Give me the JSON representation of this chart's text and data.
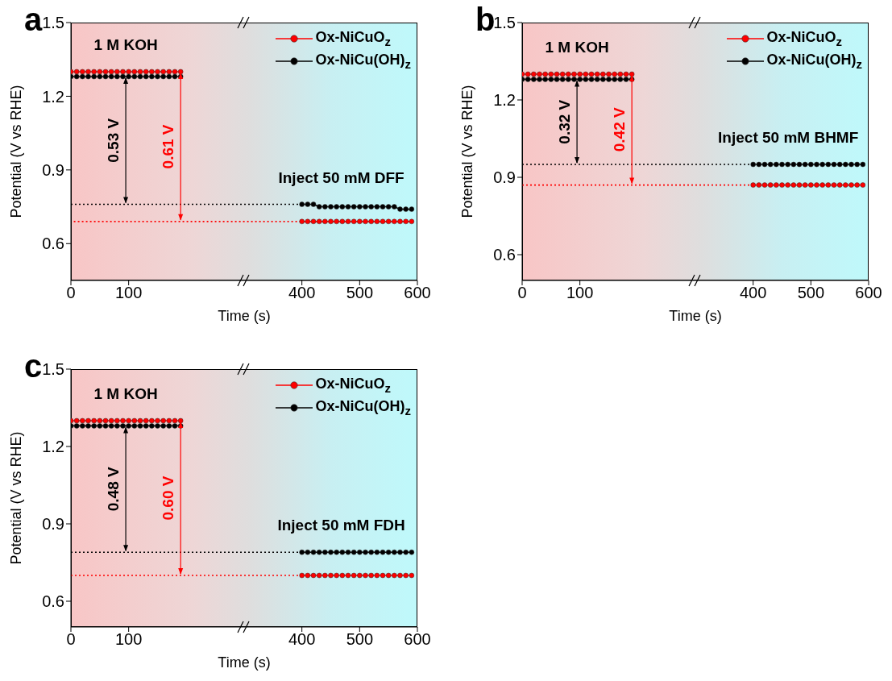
{
  "chart_data": [
    {
      "type": "line",
      "title": "a",
      "xlabel": "Time (s)",
      "ylabel": "Potential (V vs RHE)",
      "xlim": [
        0,
        600
      ],
      "xticks": [
        0,
        100,
        400,
        500,
        600
      ],
      "ylim": [
        0.45,
        1.5
      ],
      "yticks": [
        0.6,
        0.9,
        1.2,
        1.5
      ],
      "marker": "circle",
      "legend": "top right",
      "annotations": [
        "1 M KOH",
        "Inject 50 mM DFF",
        "0.53 V",
        "0.61 V"
      ],
      "series": [
        {
          "name": "Ox-NiCuO$_{z}$",
          "color": "#ff0000",
          "x": [
            0,
            10,
            20,
            30,
            40,
            50,
            60,
            70,
            80,
            90,
            100,
            110,
            120,
            130,
            140,
            150,
            160,
            170,
            180,
            190,
            200,
            400,
            410,
            420,
            430,
            440,
            450,
            460,
            470,
            480,
            490,
            500,
            510,
            520,
            530,
            540,
            550,
            560,
            570,
            580,
            590
          ],
          "values": [
            1.3,
            1.3,
            1.3,
            1.3,
            1.3,
            1.3,
            1.3,
            1.3,
            1.3,
            1.3,
            1.3,
            1.3,
            1.3,
            1.3,
            1.3,
            1.3,
            1.3,
            1.3,
            1.3,
            1.3,
            null,
            0.69,
            0.69,
            0.69,
            0.69,
            0.69,
            0.69,
            0.69,
            0.69,
            0.69,
            0.69,
            0.69,
            0.69,
            0.69,
            0.69,
            0.69,
            0.69,
            0.69,
            0.69,
            0.69,
            0.69
          ]
        },
        {
          "name": "Ox-NiCu(OH)$_{z}$",
          "color": "#000000",
          "x": [
            0,
            10,
            20,
            30,
            40,
            50,
            60,
            70,
            80,
            90,
            100,
            110,
            120,
            130,
            140,
            150,
            160,
            170,
            180,
            190,
            200,
            400,
            410,
            420,
            430,
            440,
            450,
            460,
            470,
            480,
            490,
            500,
            510,
            520,
            530,
            540,
            550,
            560,
            570,
            580,
            590
          ],
          "values": [
            1.28,
            1.28,
            1.28,
            1.28,
            1.28,
            1.28,
            1.28,
            1.28,
            1.28,
            1.28,
            1.28,
            1.28,
            1.28,
            1.28,
            1.28,
            1.28,
            1.28,
            1.28,
            1.28,
            1.28,
            null,
            0.76,
            0.76,
            0.76,
            0.75,
            0.75,
            0.75,
            0.75,
            0.75,
            0.75,
            0.75,
            0.75,
            0.75,
            0.75,
            0.75,
            0.75,
            0.75,
            0.75,
            0.74,
            0.74,
            0.74
          ]
        },
        {
          "color": "#000000",
          "line_style": "dotted",
          "marker": "none",
          "x": [
            0,
            400
          ],
          "values": [
            0.76,
            0.76
          ]
        },
        {
          "color": "#ff0000",
          "line_style": "dotted",
          "marker": "none",
          "x": [
            5,
            400
          ],
          "values": [
            0.69,
            0.69
          ]
        }
      ]
    },
    {
      "type": "line",
      "title": "b",
      "xlabel": "Time (s)",
      "ylabel": "Potential (V vs RHE)",
      "xlim": [
        0,
        600
      ],
      "xticks": [
        0,
        100,
        400,
        500,
        600
      ],
      "ylim": [
        0.5,
        1.5
      ],
      "yticks": [
        0.6,
        0.9,
        1.2,
        1.5
      ],
      "marker": "circle",
      "legend": "top right",
      "annotations": [
        "1 M KOH",
        "Inject 50 mM BHMF",
        "0.32 V",
        "0.42 V"
      ],
      "series": [
        {
          "name": "Ox-NiCuO$_{z}$",
          "color": "#ff0000",
          "x": [
            0,
            10,
            20,
            30,
            40,
            50,
            60,
            70,
            80,
            90,
            100,
            110,
            120,
            130,
            140,
            150,
            160,
            170,
            180,
            190,
            200,
            400,
            410,
            420,
            430,
            440,
            450,
            460,
            470,
            480,
            490,
            500,
            510,
            520,
            530,
            540,
            550,
            560,
            570,
            580,
            590
          ],
          "values": [
            1.3,
            1.3,
            1.3,
            1.3,
            1.3,
            1.3,
            1.3,
            1.3,
            1.3,
            1.3,
            1.3,
            1.3,
            1.3,
            1.3,
            1.3,
            1.3,
            1.3,
            1.3,
            1.3,
            1.3,
            null,
            0.87,
            0.87,
            0.87,
            0.87,
            0.87,
            0.87,
            0.87,
            0.87,
            0.87,
            0.87,
            0.87,
            0.87,
            0.87,
            0.87,
            0.87,
            0.87,
            0.87,
            0.87,
            0.87,
            0.87
          ]
        },
        {
          "name": "Ox-NiCu(OH)$_{z}$",
          "color": "#000000",
          "x": [
            0,
            10,
            20,
            30,
            40,
            50,
            60,
            70,
            80,
            90,
            100,
            110,
            120,
            130,
            140,
            150,
            160,
            170,
            180,
            190,
            200,
            400,
            410,
            420,
            430,
            440,
            450,
            460,
            470,
            480,
            490,
            500,
            510,
            520,
            530,
            540,
            550,
            560,
            570,
            580,
            590
          ],
          "values": [
            1.28,
            1.28,
            1.28,
            1.28,
            1.28,
            1.28,
            1.28,
            1.28,
            1.28,
            1.28,
            1.28,
            1.28,
            1.28,
            1.28,
            1.28,
            1.28,
            1.28,
            1.28,
            1.28,
            1.28,
            null,
            0.95,
            0.95,
            0.95,
            0.95,
            0.95,
            0.95,
            0.95,
            0.95,
            0.95,
            0.95,
            0.95,
            0.95,
            0.95,
            0.95,
            0.95,
            0.95,
            0.95,
            0.95,
            0.95,
            0.95
          ]
        },
        {
          "color": "#000000",
          "line_style": "dotted",
          "marker": "none",
          "x": [
            0,
            400
          ],
          "values": [
            0.95,
            0.95
          ]
        },
        {
          "color": "#ff0000",
          "line_style": "dotted",
          "marker": "none",
          "x": [
            0,
            400
          ],
          "values": [
            0.87,
            0.87
          ]
        }
      ]
    },
    {
      "type": "line",
      "title": "c",
      "xlabel": "Time (s)",
      "ylabel": "Potential (V vs RHE)",
      "xlim": [
        0,
        600
      ],
      "xticks": [
        0,
        100,
        400,
        500,
        600
      ],
      "ylim": [
        0.5,
        1.5
      ],
      "yticks": [
        0.6,
        0.9,
        1.2,
        1.5
      ],
      "marker": "circle",
      "legend": "top right",
      "annotations": [
        "1 M KOH",
        "Inject 50 mM FDH",
        "0.48 V",
        "0.60 V"
      ],
      "series": [
        {
          "name": "Ox-NiCuO$_{z}$",
          "color": "#ff0000",
          "x": [
            0,
            10,
            20,
            30,
            40,
            50,
            60,
            70,
            80,
            90,
            100,
            110,
            120,
            130,
            140,
            150,
            160,
            170,
            180,
            190,
            200,
            400,
            410,
            420,
            430,
            440,
            450,
            460,
            470,
            480,
            490,
            500,
            510,
            520,
            530,
            540,
            550,
            560,
            570,
            580,
            590
          ],
          "values": [
            1.3,
            1.3,
            1.3,
            1.3,
            1.3,
            1.3,
            1.3,
            1.3,
            1.3,
            1.3,
            1.3,
            1.3,
            1.3,
            1.3,
            1.3,
            1.3,
            1.3,
            1.3,
            1.3,
            1.3,
            null,
            0.7,
            0.7,
            0.7,
            0.7,
            0.7,
            0.7,
            0.7,
            0.7,
            0.7,
            0.7,
            0.7,
            0.7,
            0.7,
            0.7,
            0.7,
            0.7,
            0.7,
            0.7,
            0.7,
            0.7
          ]
        },
        {
          "name": "Ox-NiCu(OH)$_{z}$",
          "color": "#000000",
          "x": [
            0,
            10,
            20,
            30,
            40,
            50,
            60,
            70,
            80,
            90,
            100,
            110,
            120,
            130,
            140,
            150,
            160,
            170,
            180,
            190,
            200,
            400,
            410,
            420,
            430,
            440,
            450,
            460,
            470,
            480,
            490,
            500,
            510,
            520,
            530,
            540,
            550,
            560,
            570,
            580,
            590
          ],
          "values": [
            1.28,
            1.28,
            1.28,
            1.28,
            1.28,
            1.28,
            1.28,
            1.28,
            1.28,
            1.28,
            1.28,
            1.28,
            1.28,
            1.28,
            1.28,
            1.28,
            1.28,
            1.28,
            1.28,
            1.28,
            null,
            0.79,
            0.79,
            0.79,
            0.79,
            0.79,
            0.79,
            0.79,
            0.79,
            0.79,
            0.79,
            0.79,
            0.79,
            0.79,
            0.79,
            0.79,
            0.79,
            0.79,
            0.79,
            0.79,
            0.79
          ]
        },
        {
          "color": "#000000",
          "line_style": "dotted",
          "marker": "none",
          "x": [
            0,
            400
          ],
          "values": [
            0.79,
            0.79
          ]
        },
        {
          "color": "#ff0000",
          "line_style": "dotted",
          "marker": "none",
          "x": [
            0,
            400
          ],
          "values": [
            0.7,
            0.7
          ]
        }
      ]
    }
  ]
}
